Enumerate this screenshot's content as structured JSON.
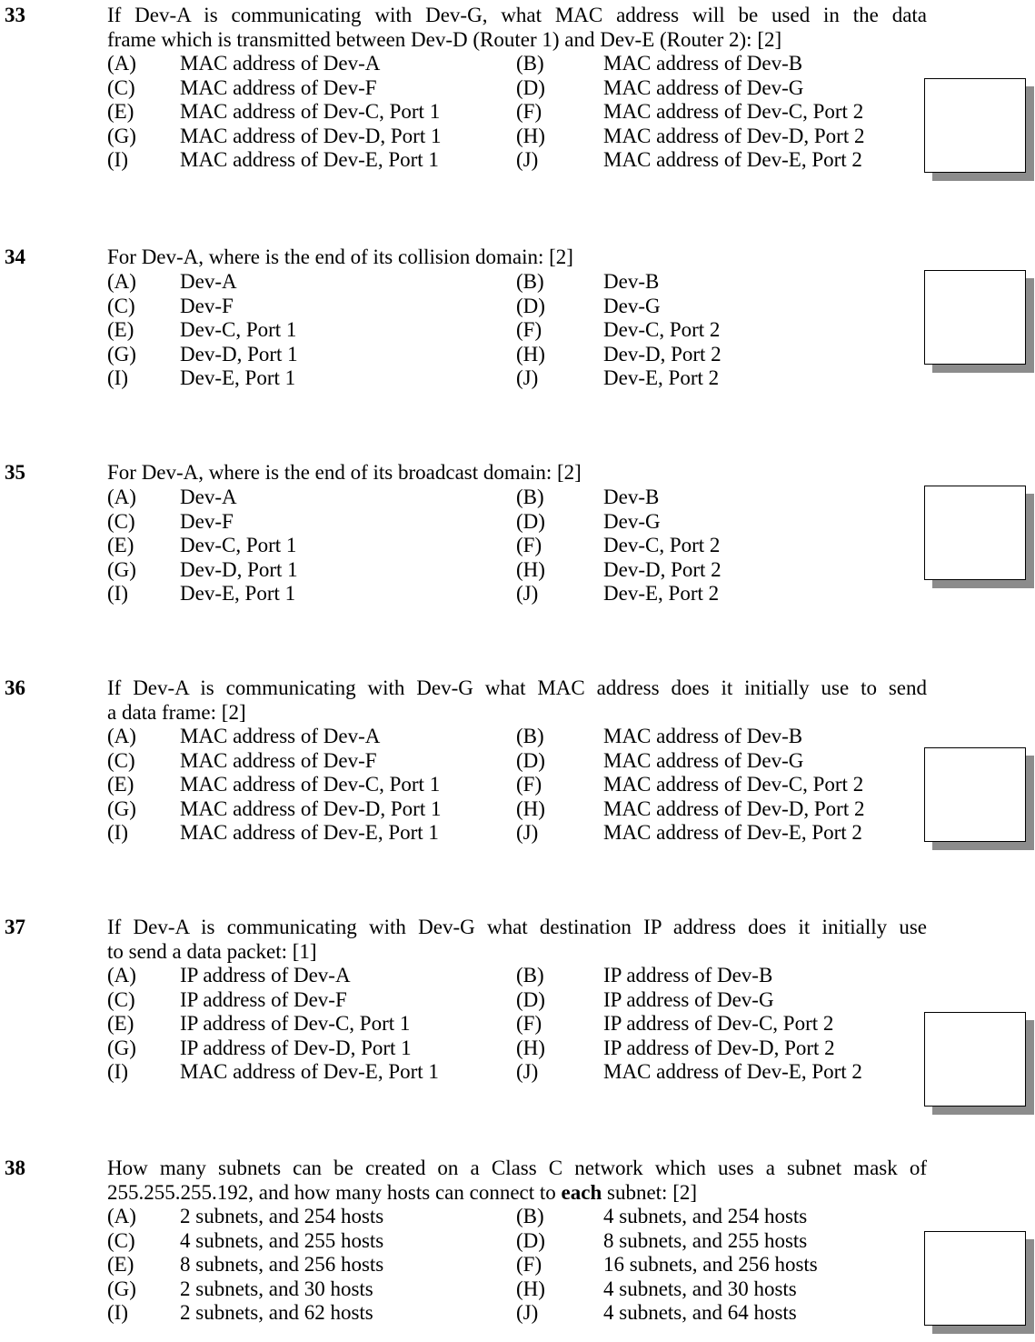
{
  "questions": [
    {
      "number": "33",
      "text_lines": [
        "If Dev-A is communicating with Dev-G, what MAC address will be used in the data",
        "frame which is transmitted between Dev-D (Router 1) and Dev-E (Router 2): [2]"
      ],
      "options": [
        [
          "(A)",
          "MAC address of Dev-A",
          "(B)",
          "MAC address of Dev-B"
        ],
        [
          "(C)",
          "MAC address of Dev-F",
          "(D)",
          "MAC address of Dev-G"
        ],
        [
          "(E)",
          "MAC address of Dev-C, Port 1",
          "(F)",
          "MAC address of Dev-C, Port 2"
        ],
        [
          "(G)",
          "MAC address of Dev-D, Port 1",
          "(H)",
          "MAC address of Dev-D, Port 2"
        ],
        [
          "(I)",
          "MAC address of Dev-E, Port 1",
          "(J)",
          "MAC address of Dev-E, Port 2"
        ]
      ]
    },
    {
      "number": "34",
      "text_lines": [
        "For Dev-A, where is the end of its collision domain: [2]"
      ],
      "options": [
        [
          "(A)",
          "Dev-A",
          "(B)",
          "Dev-B"
        ],
        [
          "(C)",
          "Dev-F",
          "(D)",
          "Dev-G"
        ],
        [
          "(E)",
          "Dev-C, Port 1",
          "(F)",
          "Dev-C, Port 2"
        ],
        [
          "(G)",
          "Dev-D, Port 1",
          "(H)",
          "Dev-D, Port 2"
        ],
        [
          "(I)",
          "Dev-E, Port 1",
          "(J)",
          "Dev-E, Port 2"
        ]
      ]
    },
    {
      "number": "35",
      "text_lines": [
        "For Dev-A, where is the end of its broadcast domain: [2]"
      ],
      "options": [
        [
          "(A)",
          "Dev-A",
          "(B)",
          "Dev-B"
        ],
        [
          "(C)",
          "Dev-F",
          "(D)",
          "Dev-G"
        ],
        [
          "(E)",
          "Dev-C, Port 1",
          "(F)",
          "Dev-C, Port 2"
        ],
        [
          "(G)",
          "Dev-D, Port 1",
          "(H)",
          "Dev-D, Port 2"
        ],
        [
          "(I)",
          "Dev-E, Port 1",
          "(J)",
          "Dev-E, Port 2"
        ]
      ]
    },
    {
      "number": "36",
      "text_lines": [
        "If Dev-A is communicating with Dev-G what MAC address does it initially use to send",
        "a data frame: [2]"
      ],
      "options": [
        [
          "(A)",
          "MAC address of Dev-A",
          "(B)",
          "MAC address of Dev-B"
        ],
        [
          "(C)",
          "MAC address of Dev-F",
          "(D)",
          "MAC address of Dev-G"
        ],
        [
          "(E)",
          "MAC address of Dev-C, Port 1",
          "(F)",
          "MAC address of Dev-C, Port 2"
        ],
        [
          "(G)",
          "MAC address of Dev-D, Port 1",
          "(H)",
          "MAC address of Dev-D, Port 2"
        ],
        [
          "(I)",
          "MAC address of Dev-E, Port 1",
          "(J)",
          "MAC address of Dev-E, Port 2"
        ]
      ]
    },
    {
      "number": "37",
      "text_lines": [
        "If Dev-A is communicating with Dev-G what destination IP address does it initially use",
        "to send a data packet: [1]"
      ],
      "options": [
        [
          "(A)",
          "IP address of Dev-A",
          "(B)",
          "IP address of Dev-B"
        ],
        [
          "(C)",
          "IP address of Dev-F",
          "(D)",
          "IP address of Dev-G"
        ],
        [
          "(E)",
          "IP address of Dev-C, Port 1",
          "(F)",
          "IP address of Dev-C, Port 2"
        ],
        [
          "(G)",
          "IP address of Dev-D, Port 1",
          "(H)",
          "IP address of Dev-D, Port 2"
        ],
        [
          "(I)",
          "MAC address of Dev-E, Port 1",
          "(J)",
          "MAC address of Dev-E, Port 2"
        ]
      ]
    },
    {
      "number": "38",
      "text_lines": [
        "How many subnets can be created on a Class C network which uses a subnet mask of",
        "255.255.255.192, and how many hosts can connect to ",
        "each",
        " subnet: [2]"
      ],
      "options": [
        [
          "(A)",
          "2 subnets, and 254 hosts",
          "(B)",
          "4 subnets, and 254 hosts"
        ],
        [
          "(C)",
          "4 subnets, and 255 hosts",
          "(D)",
          "8 subnets, and 255 hosts"
        ],
        [
          "(E)",
          "8 subnets, and 256 hosts",
          "(F)",
          "16 subnets, and 256 hosts"
        ],
        [
          "(G)",
          "2 subnets, and 30 hosts",
          "(H)",
          "4 subnets, and 30 hosts"
        ],
        [
          "(I)",
          "2 subnets, and 62 hosts",
          "(J)",
          "4 subnets, and 64 hosts"
        ]
      ]
    }
  ]
}
